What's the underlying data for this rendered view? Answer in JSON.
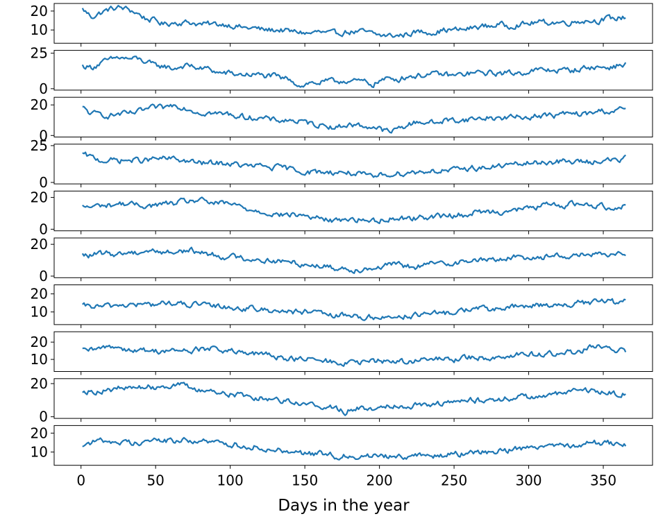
{
  "chart_data": {
    "type": "line",
    "layout": "stacked-subplots",
    "xlabel": "Days in the year",
    "xlim": [
      -18,
      383
    ],
    "x_ticks": [
      0,
      50,
      100,
      150,
      200,
      250,
      300,
      350
    ],
    "x_tick_labels": [
      "0",
      "50",
      "100",
      "150",
      "200",
      "250",
      "300",
      "350"
    ],
    "series_color": "#1f77b4",
    "x_start": 1,
    "x_end": 365,
    "subplots": [
      {
        "ylim": [
          3,
          24
        ],
        "yticks": [
          10,
          20
        ],
        "ytick_labels": [
          "10",
          "20"
        ],
        "y": [
          21.0,
          17.0,
          19.0,
          21.0,
          21.8,
          21.0,
          19.0,
          16.0,
          15.0,
          13.0,
          14.0,
          14.0,
          14.0,
          13.0,
          13.0,
          13.0,
          13.0,
          12.0,
          11.0,
          11.0,
          10.0,
          10.0,
          10.0,
          9.0,
          9.0,
          8.0,
          9.0,
          8.0,
          8.0,
          9.0,
          9.0,
          9.0,
          8.0,
          7.0,
          7.0,
          7.0,
          8.0,
          9.0,
          9.0,
          9.0,
          10.0,
          10.0,
          10.0,
          11.0,
          12.0,
          12.0,
          13.0,
          12.0,
          13.0,
          13.0,
          14.0,
          14.0,
          14.0,
          14.0,
          14.0,
          15.0,
          15.0,
          15.0,
          16.0,
          16.0,
          17.0
        ]
      },
      {
        "ylim": [
          -1,
          27
        ],
        "yticks": [
          0,
          25
        ],
        "ytick_labels": [
          "0",
          "25"
        ],
        "y": [
          16.0,
          15.0,
          18.0,
          20.0,
          22.0,
          21.0,
          21.0,
          19.0,
          16.0,
          16.0,
          14.0,
          16.0,
          16.0,
          14.0,
          14.0,
          11.0,
          11.0,
          10.0,
          10.0,
          10.0,
          9.0,
          9.0,
          7.0,
          7.0,
          2.0,
          4.0,
          4.0,
          5.0,
          5.0,
          6.0,
          5.0,
          5.0,
          3.0,
          6.0,
          7.0,
          7.0,
          9.0,
          9.0,
          10.0,
          10.0,
          10.0,
          9.0,
          10.0,
          11.0,
          11.0,
          11.0,
          11.0,
          11.0,
          11.0,
          12.0,
          13.0,
          13.0,
          13.0,
          13.0,
          13.0,
          14.0,
          15.0,
          15.0,
          15.0,
          16.0,
          17.0
        ]
      },
      {
        "ylim": [
          -1,
          25
        ],
        "yticks": [
          0,
          20
        ],
        "ytick_labels": [
          "0",
          "20"
        ],
        "y": [
          18.0,
          14.0,
          14.0,
          13.0,
          14.0,
          14.0,
          15.0,
          17.0,
          18.0,
          18.0,
          20.0,
          19.0,
          17.0,
          15.0,
          15.0,
          14.0,
          14.0,
          13.0,
          12.0,
          12.0,
          11.0,
          10.0,
          10.0,
          10.0,
          9.0,
          8.0,
          7.0,
          7.0,
          5.0,
          7.0,
          7.0,
          6.0,
          6.0,
          4.0,
          2.0,
          5.0,
          7.0,
          9.0,
          9.0,
          8.0,
          10.0,
          10.0,
          10.0,
          11.0,
          11.0,
          12.0,
          11.0,
          12.0,
          12.0,
          12.0,
          13.0,
          13.0,
          13.0,
          14.0,
          14.0,
          14.0,
          14.0,
          16.0,
          16.0,
          16.0,
          18.0
        ]
      },
      {
        "ylim": [
          -1,
          26
        ],
        "yticks": [
          0,
          25
        ],
        "ytick_labels": [
          "0",
          "25"
        ],
        "y": [
          19.0,
          17.0,
          15.0,
          15.0,
          15.0,
          15.0,
          15.0,
          15.0,
          16.0,
          16.0,
          16.0,
          15.0,
          14.0,
          13.0,
          13.0,
          13.0,
          13.0,
          12.0,
          11.0,
          11.0,
          11.0,
          10.0,
          10.0,
          9.0,
          8.0,
          7.0,
          7.0,
          7.0,
          7.0,
          7.0,
          6.0,
          5.0,
          3.0,
          5.0,
          6.0,
          6.0,
          7.0,
          7.0,
          8.0,
          8.0,
          8.0,
          8.0,
          9.0,
          10.0,
          10.0,
          10.0,
          11.0,
          12.0,
          12.0,
          13.0,
          13.0,
          14.0,
          14.0,
          14.0,
          14.0,
          14.0,
          14.0,
          15.0,
          15.0,
          15.0,
          16.0
        ]
      },
      {
        "ylim": [
          -1,
          24
        ],
        "yticks": [
          0,
          20
        ],
        "ytick_labels": [
          "0",
          "20"
        ],
        "y": [
          14.0,
          14.0,
          15.0,
          15.0,
          16.0,
          16.0,
          15.0,
          15.0,
          15.0,
          16.0,
          16.0,
          17.0,
          18.0,
          18.0,
          17.0,
          16.0,
          16.0,
          15.0,
          13.0,
          12.0,
          11.0,
          10.0,
          9.0,
          9.0,
          9.0,
          8.0,
          7.0,
          6.0,
          5.0,
          7.0,
          6.0,
          6.0,
          5.0,
          6.0,
          7.0,
          7.0,
          7.0,
          7.0,
          8.0,
          8.0,
          8.0,
          9.0,
          9.0,
          10.0,
          11.0,
          11.0,
          11.0,
          12.0,
          12.0,
          13.0,
          14.0,
          15.0,
          15.0,
          15.0,
          16.0,
          16.0,
          15.0,
          15.0,
          14.0,
          14.0,
          15.0
        ]
      },
      {
        "ylim": [
          -1,
          24
        ],
        "yticks": [
          0,
          20
        ],
        "ytick_labels": [
          "0",
          "20"
        ],
        "y": [
          13.0,
          13.0,
          14.0,
          14.0,
          14.0,
          15.0,
          15.0,
          16.0,
          16.0,
          15.0,
          15.0,
          16.0,
          16.0,
          15.0,
          14.0,
          13.0,
          12.0,
          12.0,
          11.0,
          11.0,
          10.0,
          10.0,
          9.0,
          9.0,
          8.0,
          7.0,
          7.0,
          6.0,
          5.0,
          5.0,
          4.0,
          5.0,
          5.0,
          6.0,
          7.0,
          7.0,
          6.0,
          6.0,
          7.0,
          8.0,
          8.0,
          9.0,
          9.0,
          10.0,
          10.0,
          10.0,
          11.0,
          11.0,
          12.0,
          12.0,
          12.0,
          12.0,
          13.0,
          13.0,
          13.0,
          13.0,
          14.0,
          13.0,
          13.0,
          13.0,
          15.0
        ]
      },
      {
        "ylim": [
          3,
          25
        ],
        "yticks": [
          10,
          20
        ],
        "ytick_labels": [
          "10",
          "20"
        ],
        "y": [
          13.0,
          13.0,
          13.0,
          13.0,
          14.0,
          14.0,
          14.0,
          14.0,
          14.0,
          15.0,
          15.0,
          14.0,
          14.0,
          14.0,
          13.0,
          13.0,
          13.0,
          12.0,
          12.0,
          12.0,
          11.0,
          11.0,
          11.0,
          10.0,
          10.0,
          10.0,
          9.0,
          8.0,
          8.0,
          8.0,
          8.0,
          7.0,
          7.0,
          7.0,
          7.0,
          8.0,
          8.0,
          8.0,
          9.0,
          9.0,
          9.0,
          10.0,
          11.0,
          12.0,
          12.0,
          11.0,
          12.0,
          12.0,
          13.0,
          13.0,
          14.0,
          14.0,
          14.0,
          14.0,
          14.0,
          15.0,
          15.0,
          16.0,
          16.0,
          15.0,
          16.0
        ]
      },
      {
        "ylim": [
          3,
          26
        ],
        "yticks": [
          10,
          20
        ],
        "ytick_labels": [
          "10",
          "20"
        ],
        "y": [
          15.0,
          15.0,
          16.0,
          18.0,
          17.0,
          16.0,
          15.0,
          15.0,
          15.0,
          15.0,
          15.0,
          15.0,
          15.0,
          16.0,
          16.0,
          16.0,
          15.0,
          14.0,
          13.0,
          13.0,
          13.0,
          12.0,
          11.0,
          11.0,
          10.0,
          10.0,
          9.0,
          9.0,
          8.0,
          8.0,
          8.0,
          8.0,
          9.0,
          9.0,
          9.0,
          9.0,
          9.0,
          9.0,
          10.0,
          10.0,
          10.0,
          10.0,
          11.0,
          11.0,
          11.0,
          11.0,
          12.0,
          12.0,
          13.0,
          13.0,
          13.0,
          13.0,
          13.0,
          14.0,
          14.0,
          15.0,
          17.0,
          17.0,
          16.0,
          15.0,
          15.0
        ]
      },
      {
        "ylim": [
          -1,
          23
        ],
        "yticks": [
          0,
          20
        ],
        "ytick_labels": [
          "0",
          "20"
        ],
        "y": [
          16.0,
          15.0,
          16.0,
          16.0,
          17.0,
          17.0,
          18.0,
          18.0,
          18.0,
          19.0,
          19.0,
          19.0,
          17.0,
          16.0,
          16.0,
          15.0,
          14.0,
          13.0,
          13.0,
          12.0,
          11.0,
          11.0,
          10.0,
          10.0,
          8.0,
          7.0,
          7.0,
          6.0,
          5.0,
          3.0,
          5.0,
          5.0,
          5.0,
          6.0,
          7.0,
          7.0,
          7.0,
          7.0,
          8.0,
          8.0,
          8.0,
          9.0,
          9.0,
          10.0,
          10.0,
          10.0,
          11.0,
          11.0,
          12.0,
          12.0,
          12.0,
          13.0,
          13.0,
          14.0,
          15.0,
          16.0,
          16.0,
          15.0,
          15.0,
          14.0,
          14.0
        ]
      },
      {
        "ylim": [
          3,
          24
        ],
        "yticks": [
          10,
          20
        ],
        "ytick_labels": [
          "10",
          "20"
        ],
        "y": [
          14.0,
          15.0,
          16.0,
          16.0,
          15.0,
          15.0,
          15.0,
          16.0,
          16.0,
          16.0,
          16.0,
          16.0,
          16.0,
          16.0,
          15.0,
          15.0,
          14.0,
          14.0,
          13.0,
          13.0,
          12.0,
          11.0,
          11.0,
          11.0,
          10.0,
          9.0,
          9.0,
          9.0,
          8.0,
          8.0,
          8.0,
          8.0,
          8.0,
          8.0,
          8.0,
          8.0,
          8.0,
          8.0,
          8.0,
          8.0,
          8.0,
          9.0,
          9.0,
          10.0,
          10.0,
          10.0,
          11.0,
          11.0,
          12.0,
          12.0,
          13.0,
          14.0,
          14.0,
          14.0,
          14.0,
          14.0,
          15.0,
          15.0,
          15.0,
          14.0,
          14.0
        ]
      }
    ]
  }
}
